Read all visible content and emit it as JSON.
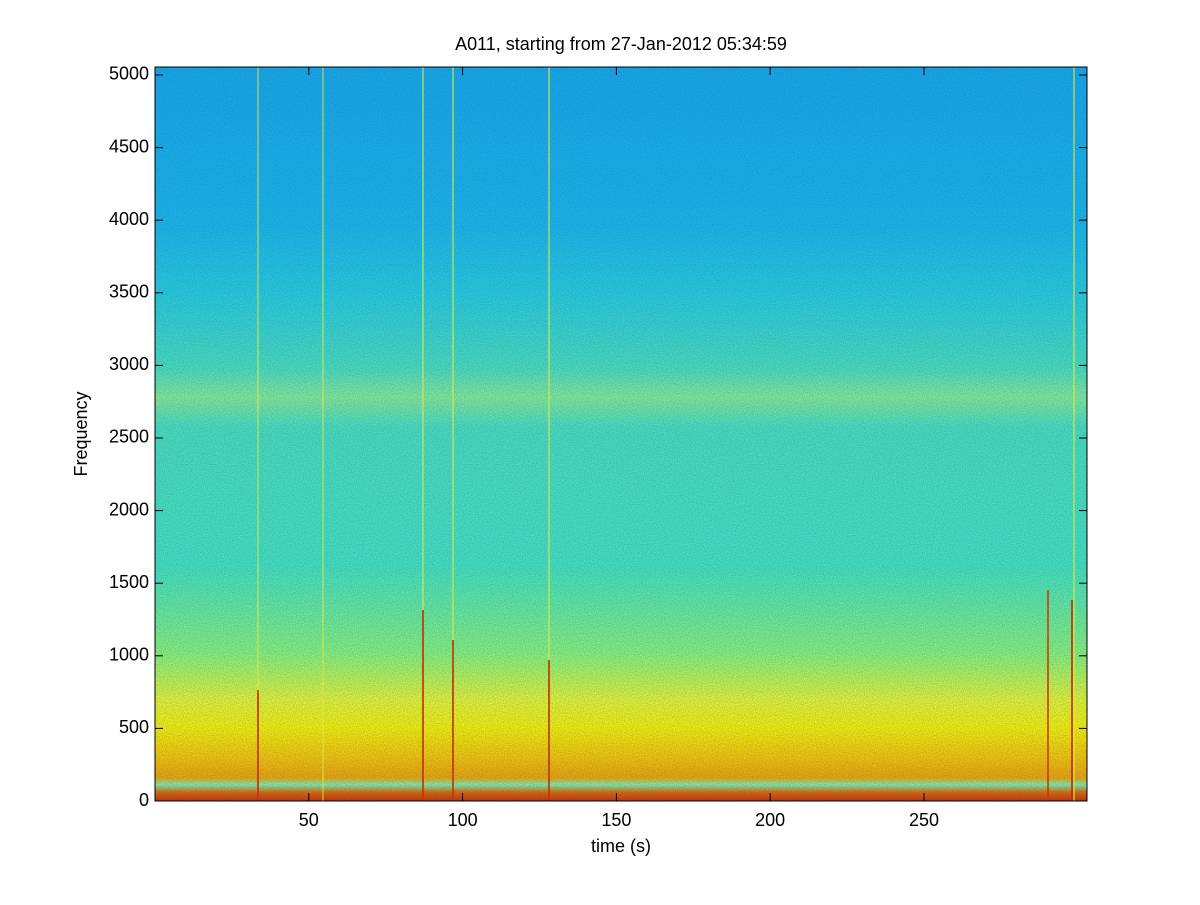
{
  "chart_data": {
    "type": "spectrogram",
    "title": "A011, starting from 27-Jan-2012 05:34:59",
    "x_label": "time (s)",
    "y_label": "Frequency",
    "colormap": "jet",
    "xlim": [
      0,
      303
    ],
    "ylim": [
      0,
      5055
    ],
    "xticks": [
      50,
      100,
      150,
      200,
      250
    ],
    "yticks": [
      0,
      500,
      1000,
      1500,
      2000,
      2500,
      3000,
      3500,
      4000,
      4500,
      5000
    ]
  }
}
